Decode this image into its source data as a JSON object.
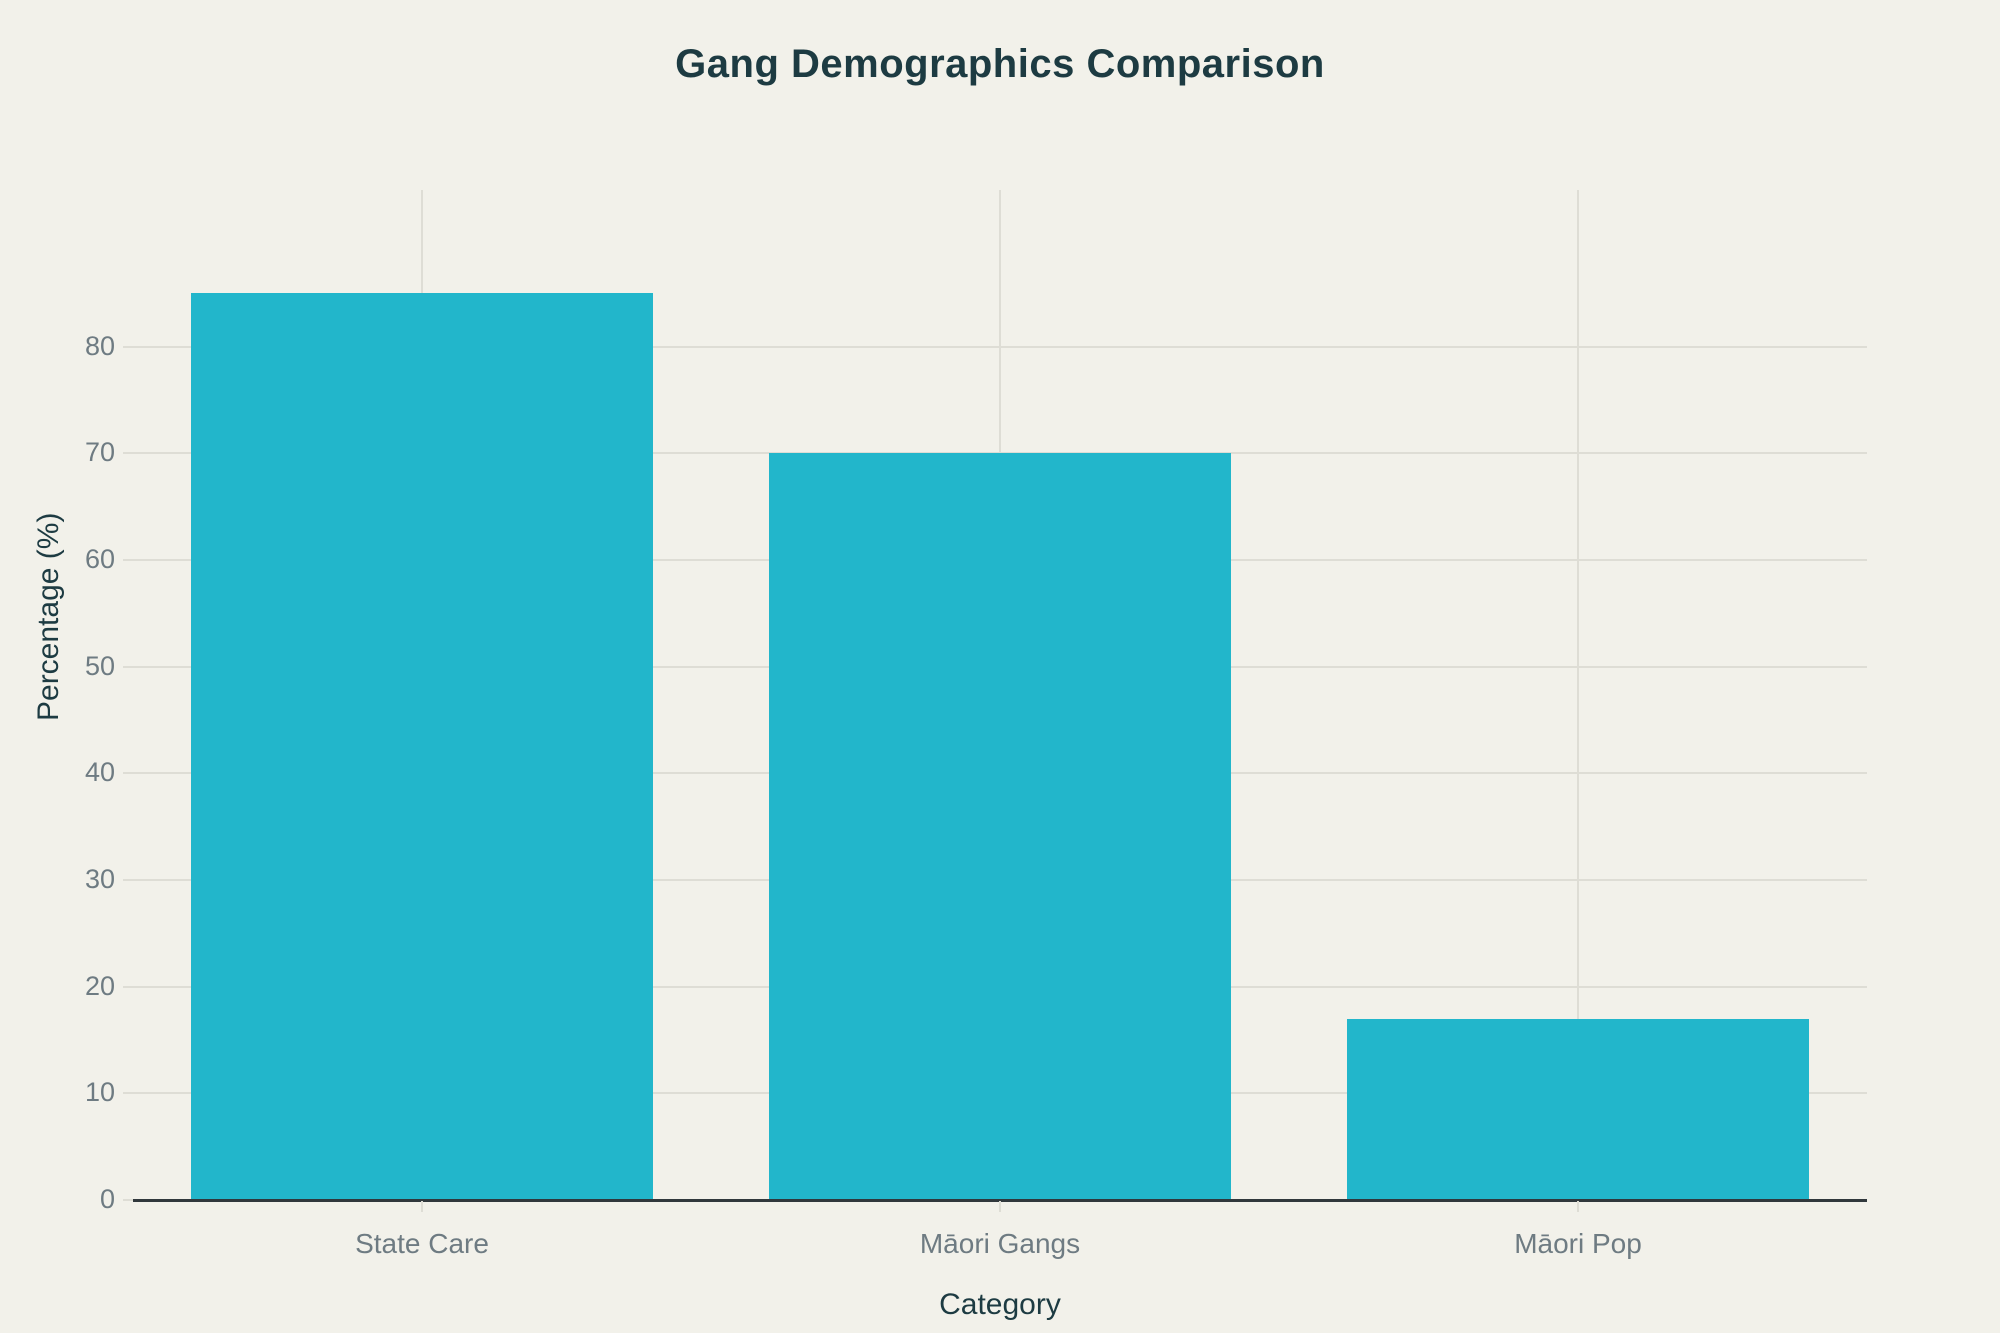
{
  "page": {
    "background_color": "#f2f1ea"
  },
  "chart_data": {
    "type": "bar",
    "title": "Gang Demographics Comparison",
    "categories": [
      "State Care",
      "Māori Gangs",
      "Māori Pop"
    ],
    "values": [
      85,
      70,
      17
    ],
    "xlabel": "Category",
    "ylabel": "Percentage (%)",
    "yticks": [
      0,
      10,
      20,
      30,
      40,
      50,
      60,
      70,
      80
    ],
    "ylim": [
      0,
      94.7
    ],
    "grid": true,
    "legend_position": "none",
    "colors": {
      "bar": "#22b6cb",
      "background": "#f2f1ea",
      "gridline": "#deddd5",
      "zero_line": "#31383c",
      "tick_text": "#6e7b82",
      "title_text": "#1d3b42"
    }
  }
}
